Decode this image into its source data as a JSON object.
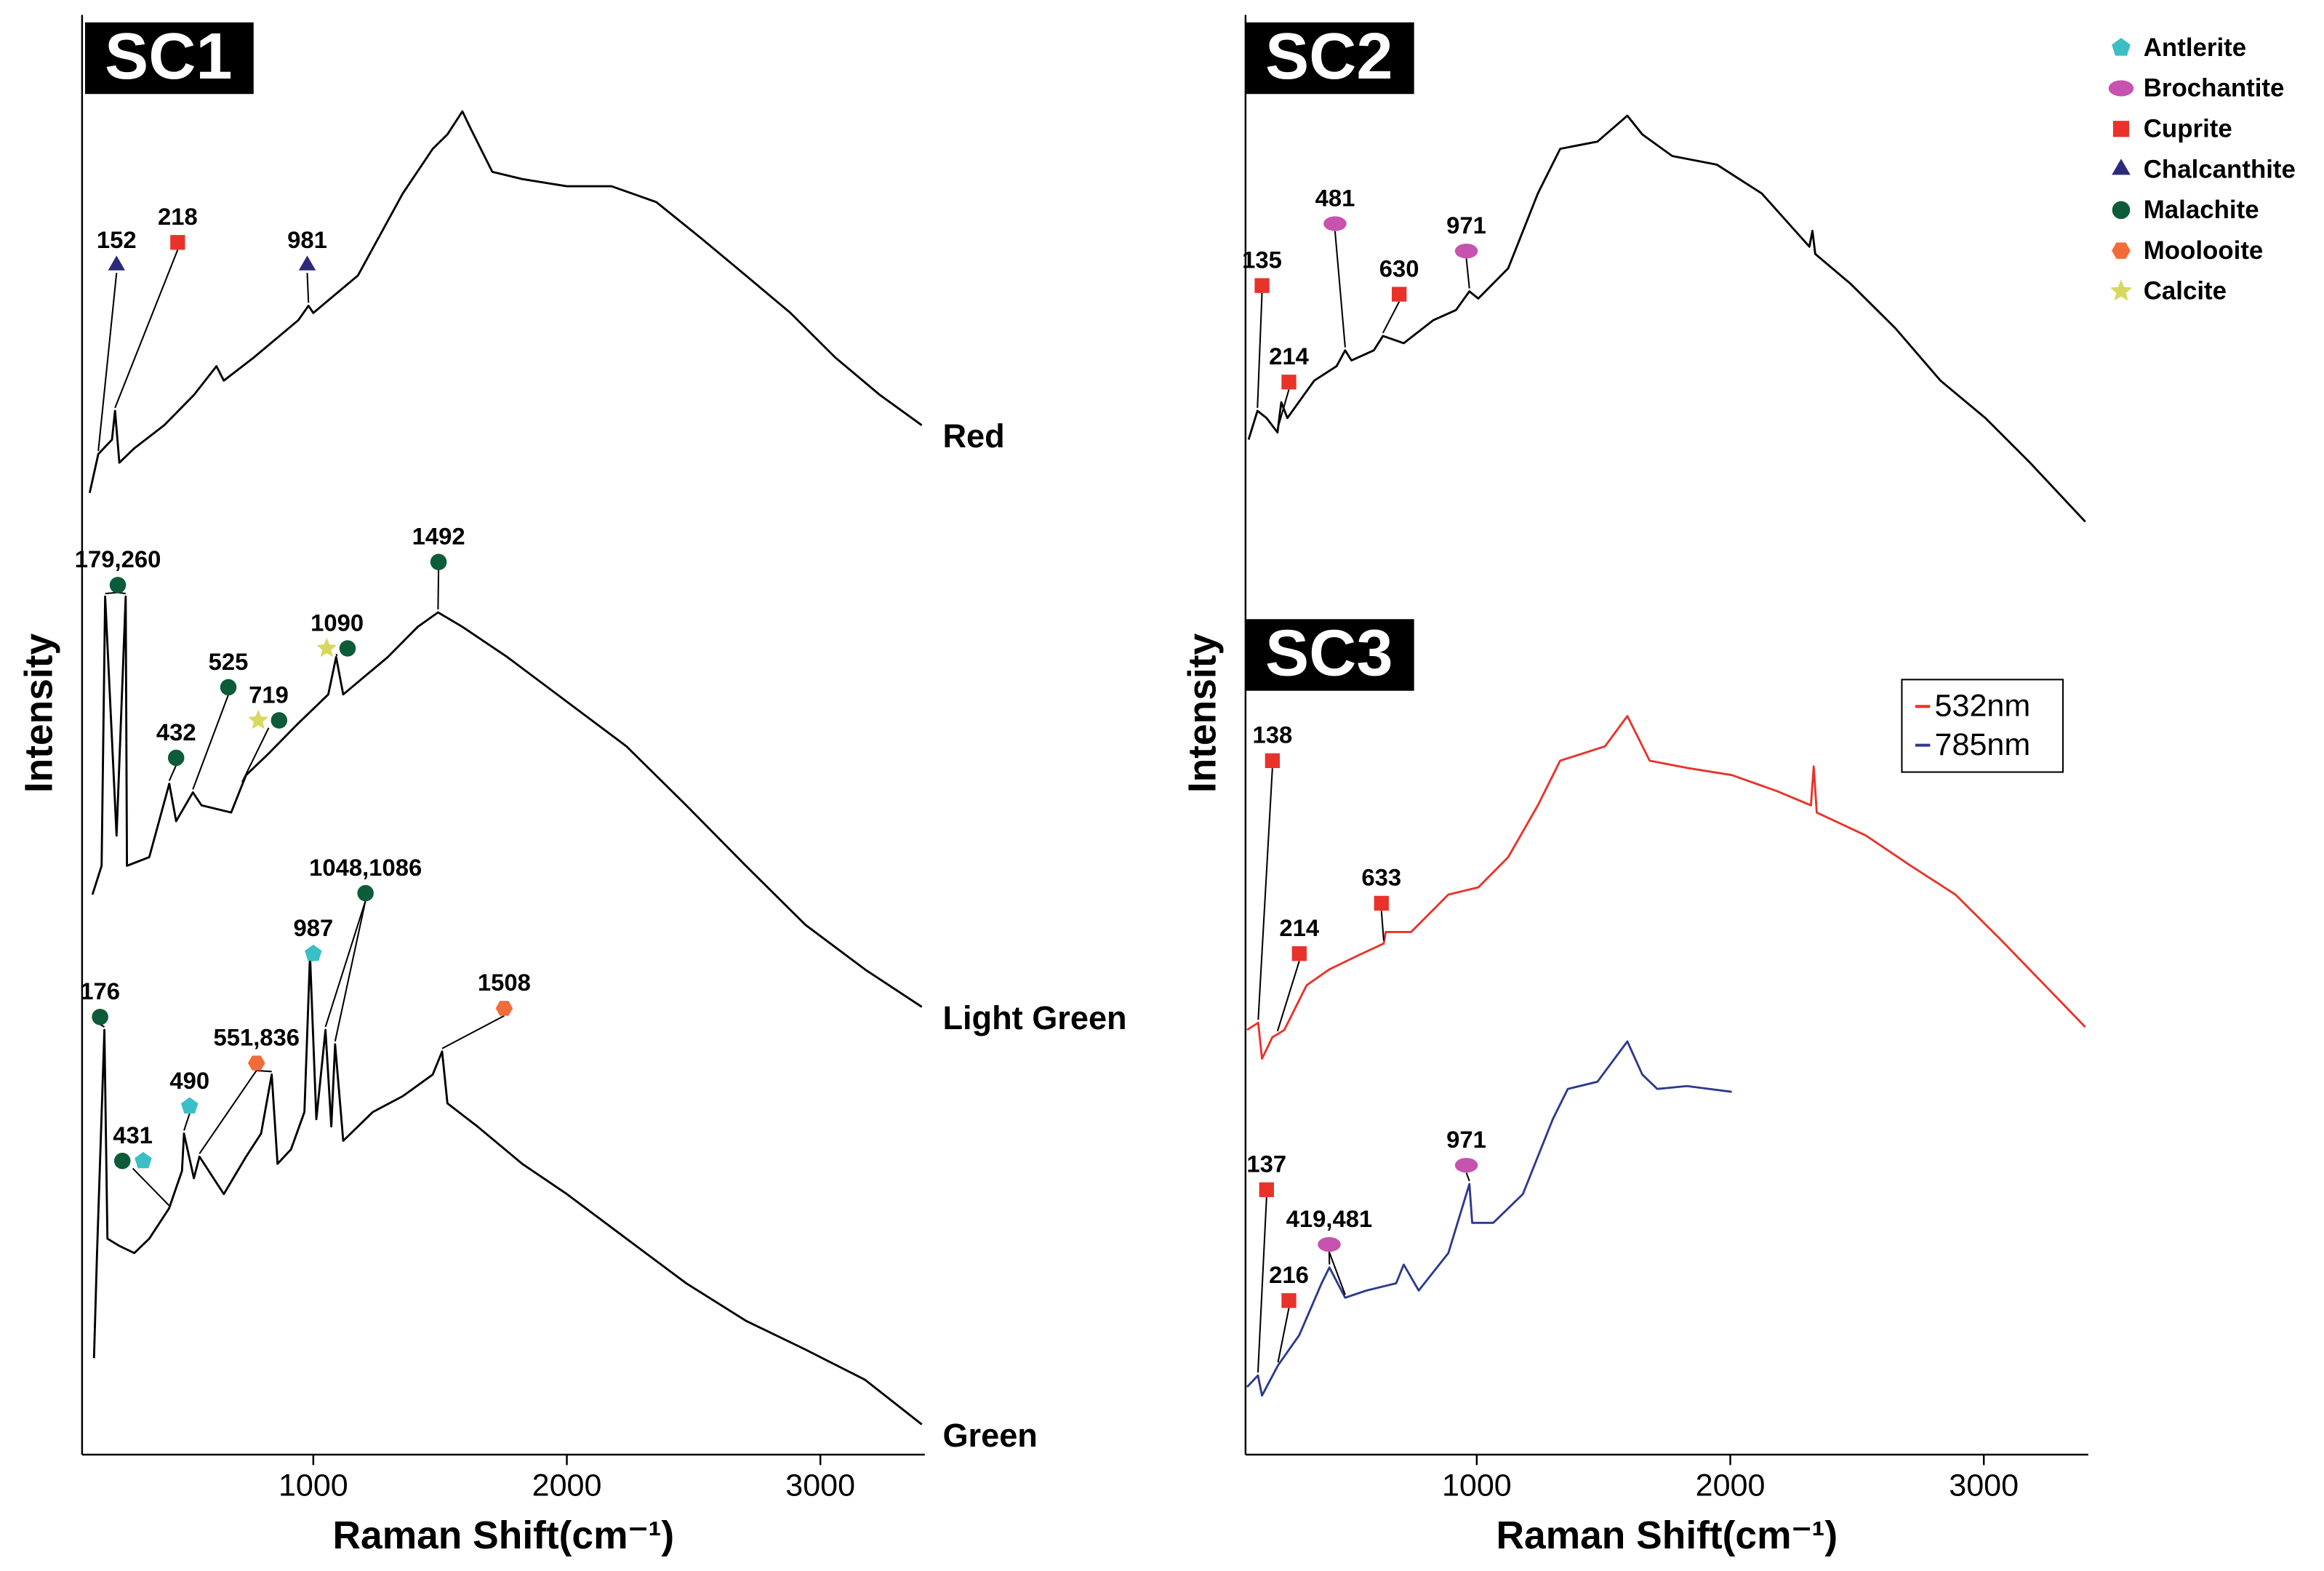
{
  "chart_data": [
    {
      "type": "line",
      "panel_labels": [
        "SC1"
      ],
      "x_label": "Raman Shift(cm⁻¹)",
      "y_label": "Intensity",
      "xlim": [
        88,
        3412
      ],
      "xticks": [
        1000,
        2000,
        3000
      ],
      "ylim": [
        0,
        100
      ],
      "legend": "line-end",
      "series": [
        {
          "name": "Red",
          "color": "#000000",
          "x": [
            118,
            152,
            206,
            218,
            235,
            294,
            412,
            529,
            618,
            647,
            765,
            941,
            981,
            1000,
            1176,
            1353,
            1471,
            1529,
            1588,
            1618,
            1706,
            1824,
            2000,
            2176,
            2353,
            2529,
            2706,
            2882,
            3059,
            3235,
            3400
          ],
          "values": [
            66.8,
            69.5,
            70.5,
            72.5,
            68.9,
            69.9,
            71.5,
            73.6,
            75.6,
            74.6,
            76.2,
            78.8,
            79.8,
            79.3,
            81.9,
            87.6,
            90.7,
            91.7,
            93.3,
            92.2,
            89.1,
            88.6,
            88.1,
            88.1,
            87.0,
            84.5,
            81.9,
            79.3,
            76.2,
            73.6,
            71.5
          ],
          "annotations": [
            {
              "text": "152",
              "x": [
                152
              ],
              "text_x": 224,
              "text_y": 82.6,
              "minerals": [
                "Chalcanthite"
              ]
            },
            {
              "text": "218",
              "x": [
                218
              ],
              "text_x": 465,
              "text_y": 84.2,
              "minerals": [
                "Cuprite"
              ]
            },
            {
              "text": "981",
              "x": [
                981
              ],
              "text_x": 976,
              "text_y": 82.6,
              "minerals": [
                "Chalcanthite"
              ]
            }
          ]
        },
        {
          "name": "Light Green",
          "color": "#000000",
          "x": [
            129,
            165,
            179,
            224,
            260,
            265,
            353,
            432,
            459,
            525,
            559,
            676,
            719,
            735,
            824,
            941,
            1059,
            1090,
            1118,
            1294,
            1412,
            1492,
            1588,
            1765,
            2000,
            2235,
            2471,
            2706,
            2941,
            3176,
            3400
          ],
          "values": [
            38.9,
            40.9,
            59.6,
            43.0,
            59.6,
            40.9,
            41.5,
            46.6,
            44.0,
            46.0,
            45.1,
            44.6,
            46.5,
            47.2,
            48.7,
            50.8,
            52.8,
            55.4,
            52.8,
            55.4,
            57.5,
            58.5,
            57.5,
            55.4,
            52.3,
            49.2,
            45.1,
            40.9,
            36.8,
            33.7,
            31.1
          ],
          "annotations": [
            {
              "text": "179,260",
              "x": [
                179,
                260
              ],
              "text_x": 229,
              "text_y": 60.4,
              "minerals": [
                "Malachite"
              ]
            },
            {
              "text": "1492",
              "x": [
                1492
              ],
              "text_x": 1494,
              "text_y": 62.0,
              "minerals": [
                "Malachite"
              ]
            },
            {
              "text": "432",
              "x": [
                432
              ],
              "text_x": 459,
              "text_y": 48.4,
              "minerals": [
                "Malachite"
              ]
            },
            {
              "text": "525",
              "x": [
                525
              ],
              "text_x": 665,
              "text_y": 53.3,
              "minerals": [
                "Malachite"
              ]
            },
            {
              "text": "719",
              "x": [
                719
              ],
              "text_x": 824,
              "text_y": 51.0,
              "minerals": [
                "Calcite",
                "Malachite"
              ]
            },
            {
              "text": "1090",
              "x": [
                1090
              ],
              "text_x": 1094,
              "text_y": 56.0,
              "minerals": [
                "Calcite",
                "Malachite"
              ]
            }
          ]
        },
        {
          "name": "Green",
          "color": "#000000",
          "x": [
            135,
            147,
            176,
            188,
            235,
            294,
            353,
            431,
            482,
            490,
            529,
            551,
            647,
            735,
            794,
            836,
            859,
            912,
            965,
            987,
            1012,
            1048,
            1071,
            1086,
            1118,
            1235,
            1353,
            1471,
            1508,
            1529,
            1647,
            1824,
            2000,
            2235,
            2471,
            2706,
            2941,
            3176,
            3400
          ],
          "values": [
            6.7,
            14.0,
            29.5,
            15.0,
            14.5,
            14.0,
            15.0,
            17.1,
            19.7,
            22.3,
            19.2,
            20.7,
            18.1,
            20.7,
            22.3,
            26.4,
            20.2,
            21.2,
            23.8,
            34.7,
            23.3,
            29.5,
            22.8,
            28.5,
            21.8,
            23.8,
            24.9,
            26.4,
            28.0,
            24.4,
            22.8,
            20.2,
            18.1,
            15.0,
            11.9,
            9.3,
            7.3,
            5.2,
            2.1
          ],
          "annotations": [
            {
              "text": "176",
              "x": [
                176
              ],
              "text_x": 159,
              "text_y": 30.4,
              "minerals": [
                "Malachite"
              ]
            },
            {
              "text": "431",
              "x": [
                431
              ],
              "text_x": 288,
              "text_y": 20.4,
              "minerals": [
                "Malachite",
                "Antlerite"
              ]
            },
            {
              "text": "490",
              "x": [
                490
              ],
              "text_x": 512,
              "text_y": 24.2,
              "minerals": [
                "Antlerite"
              ]
            },
            {
              "text": "551,836",
              "x": [
                551,
                836
              ],
              "text_x": 776,
              "text_y": 27.2,
              "minerals": [
                "Moolooite"
              ]
            },
            {
              "text": "987",
              "x": [
                987
              ],
              "text_x": 1000,
              "text_y": 34.8,
              "minerals": [
                "Antlerite"
              ]
            },
            {
              "text": "1048,1086",
              "x": [
                1048,
                1086
              ],
              "text_x": 1206,
              "text_y": 39.0,
              "minerals": [
                "Malachite"
              ]
            },
            {
              "text": "1508",
              "x": [
                1508
              ],
              "text_x": 1753,
              "text_y": 31.0,
              "minerals": [
                "Moolooite"
              ]
            }
          ]
        }
      ]
    },
    {
      "type": "line",
      "panel_labels": [
        "SC2",
        "SC3"
      ],
      "x_label": "Raman Shift(cm⁻¹)",
      "y_label": "Intensity",
      "xlim": [
        88,
        3412
      ],
      "xticks": [
        1000,
        2000,
        3000
      ],
      "ylim": [
        0,
        100
      ],
      "legend": "center right",
      "marker_legend": [
        {
          "name": "Antlerite",
          "color": "#3bbfc6",
          "shape": "pentagon"
        },
        {
          "name": "Brochantite",
          "color": "#c653ad",
          "shape": "ellipse"
        },
        {
          "name": "Cuprite",
          "color": "#e8322a",
          "shape": "square"
        },
        {
          "name": "Chalcanthite",
          "color": "#2e2a7a",
          "shape": "triangle"
        },
        {
          "name": "Malachite",
          "color": "#0c5c3a",
          "shape": "circle"
        },
        {
          "name": "Moolooite",
          "color": "#f26c3a",
          "shape": "hexagon"
        },
        {
          "name": "Calcite",
          "color": "#d8d860",
          "shape": "star"
        }
      ],
      "series": [
        {
          "color": "#000000",
          "x": [
            100,
            135,
            171,
            214,
            229,
            253,
            359,
            447,
            481,
            506,
            594,
            630,
            712,
            829,
            918,
            971,
            1006,
            1124,
            1241,
            1329,
            1476,
            1594,
            1653,
            1771,
            1947,
            2124,
            2312,
            2324,
            2335,
            2476,
            2653,
            2829,
            3006,
            3182,
            3400
          ],
          "values": [
            70.5,
            72.5,
            72.0,
            71.0,
            73.1,
            72.0,
            74.6,
            75.6,
            76.7,
            76.0,
            76.7,
            77.7,
            77.2,
            78.8,
            79.5,
            80.8,
            80.3,
            82.4,
            87.6,
            90.7,
            91.2,
            93.0,
            91.7,
            90.2,
            89.6,
            87.6,
            83.9,
            85.0,
            83.4,
            81.3,
            78.2,
            74.6,
            72.0,
            68.9,
            64.8
          ],
          "annotations": [
            {
              "text": "135",
              "x": [
                135
              ],
              "text_x": 153,
              "text_y": 81.2,
              "minerals": [
                "Cuprite"
              ]
            },
            {
              "text": "214",
              "x": [
                214
              ],
              "text_x": 259,
              "text_y": 74.5,
              "minerals": [
                "Cuprite"
              ]
            },
            {
              "text": "481",
              "x": [
                481
              ],
              "text_x": 441,
              "text_y": 85.5,
              "minerals": [
                "Brochantite"
              ]
            },
            {
              "text": "630",
              "x": [
                630
              ],
              "text_x": 694,
              "text_y": 80.6,
              "minerals": [
                "Cuprite"
              ]
            },
            {
              "text": "971",
              "x": [
                971
              ],
              "text_x": 959,
              "text_y": 83.6,
              "minerals": [
                "Brochantite"
              ]
            }
          ]
        },
        {
          "name": "532nm",
          "color": "#e8332a",
          "x": [
            94,
            138,
            153,
            194,
            214,
            241,
            329,
            418,
            535,
            633,
            641,
            741,
            888,
            1006,
            1124,
            1241,
            1329,
            1418,
            1506,
            1594,
            1682,
            1829,
            2006,
            2182,
            2318,
            2329,
            2341,
            2535,
            2712,
            2888,
            3065,
            3241,
            3400
          ],
          "values": [
            29.5,
            30.0,
            27.5,
            29.0,
            29.2,
            29.5,
            32.6,
            33.7,
            34.7,
            35.5,
            36.3,
            36.3,
            38.9,
            39.4,
            41.5,
            45.1,
            48.2,
            48.7,
            49.2,
            51.3,
            48.2,
            47.7,
            47.2,
            46.1,
            45.1,
            47.8,
            44.6,
            43.0,
            40.9,
            38.9,
            35.8,
            32.6,
            29.7
          ],
          "annotations": [
            {
              "text": "138",
              "x": [
                138
              ],
              "text_x": 194,
              "text_y": 48.2,
              "minerals": [
                "Cuprite"
              ]
            },
            {
              "text": "214",
              "x": [
                214
              ],
              "text_x": 300,
              "text_y": 34.8,
              "minerals": [
                "Cuprite"
              ]
            },
            {
              "text": "633",
              "x": [
                633
              ],
              "text_x": 624,
              "text_y": 38.3,
              "minerals": [
                "Cuprite"
              ]
            }
          ]
        },
        {
          "name": "785nm",
          "color": "#2d3a8c",
          "x": [
            94,
            137,
            153,
            216,
            300,
            388,
            419,
            481,
            565,
            682,
            712,
            771,
            888,
            971,
            982,
            1065,
            1182,
            1300,
            1359,
            1476,
            1594,
            1653,
            1712,
            1829,
            2006
          ],
          "values": [
            4.7,
            5.5,
            4.1,
            6.2,
            8.3,
            11.9,
            13.0,
            10.9,
            11.4,
            11.9,
            13.2,
            11.4,
            14.0,
            18.8,
            16.1,
            16.1,
            18.1,
            23.3,
            25.4,
            25.9,
            28.7,
            26.4,
            25.4,
            25.6,
            25.2
          ],
          "annotations": [
            {
              "text": "137",
              "x": [
                137
              ],
              "text_x": 171,
              "text_y": 18.4,
              "minerals": [
                "Cuprite"
              ]
            },
            {
              "text": "216",
              "x": [
                216
              ],
              "text_x": 259,
              "text_y": 10.7,
              "minerals": [
                "Cuprite"
              ]
            },
            {
              "text": "419,481",
              "x": [
                419,
                481
              ],
              "text_x": 418,
              "text_y": 14.6,
              "minerals": [
                "Brochantite"
              ]
            },
            {
              "text": "971",
              "x": [
                971
              ],
              "text_x": 959,
              "text_y": 20.1,
              "minerals": [
                "Brochantite"
              ]
            }
          ]
        }
      ]
    }
  ]
}
